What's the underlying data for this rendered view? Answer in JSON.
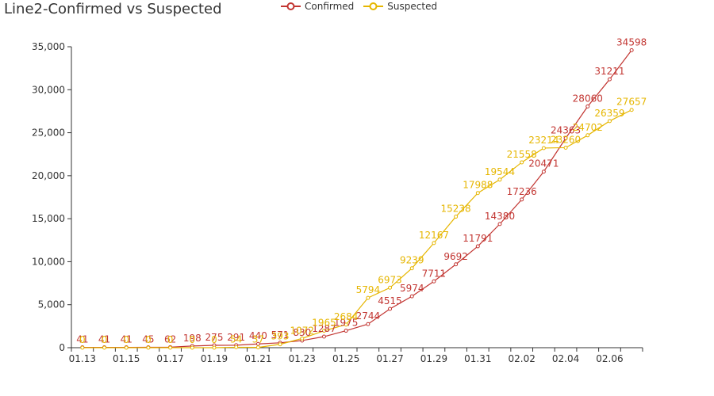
{
  "title": "Line2-Confirmed vs Suspected",
  "legend": [
    {
      "name": "Confirmed",
      "color": "#c23531"
    },
    {
      "name": "Suspected",
      "color": "#e6b600"
    }
  ],
  "chart_data": {
    "type": "line",
    "title": "Line2-Confirmed vs Suspected",
    "xlabel": "",
    "ylabel": "",
    "x": [
      "01.13",
      "01.14",
      "01.15",
      "01.16",
      "01.17",
      "01.18",
      "01.19",
      "01.20",
      "01.21",
      "01.22",
      "01.23",
      "01.24",
      "01.25",
      "01.26",
      "01.27",
      "01.28",
      "01.29",
      "01.30",
      "01.31",
      "02.01",
      "02.02",
      "02.03",
      "02.04",
      "02.05",
      "02.06",
      "02.07"
    ],
    "x_tick_labels": [
      "01.13",
      "01.15",
      "01.17",
      "01.19",
      "01.21",
      "01.23",
      "01.25",
      "01.27",
      "01.29",
      "01.31",
      "02.02",
      "02.04",
      "02.06"
    ],
    "ylim": [
      0,
      35000
    ],
    "y_ticks": [
      0,
      5000,
      10000,
      15000,
      20000,
      25000,
      30000,
      35000
    ],
    "y_tick_labels": [
      "0",
      "5,000",
      "10,000",
      "15,000",
      "20,000",
      "25,000",
      "30,000",
      "35,000"
    ],
    "grid": false,
    "legend_position": "top-center",
    "series": [
      {
        "name": "Confirmed",
        "color": "#c23531",
        "values": [
          41,
          41,
          41,
          45,
          62,
          198,
          275,
          291,
          440,
          571,
          830,
          1287,
          1975,
          2744,
          4515,
          5974,
          7711,
          9692,
          11791,
          14380,
          17236,
          20471,
          24363,
          28060,
          31211,
          34598
        ]
      },
      {
        "name": "Suspected",
        "color": "#e6b600",
        "values": [
          0,
          0,
          0,
          0,
          0,
          0,
          0,
          54,
          37,
          393,
          1072,
          1965,
          2684,
          5794,
          6973,
          9239,
          12167,
          15238,
          17988,
          19544,
          21558,
          23214,
          23260,
          24702,
          26359,
          27657
        ]
      }
    ]
  }
}
